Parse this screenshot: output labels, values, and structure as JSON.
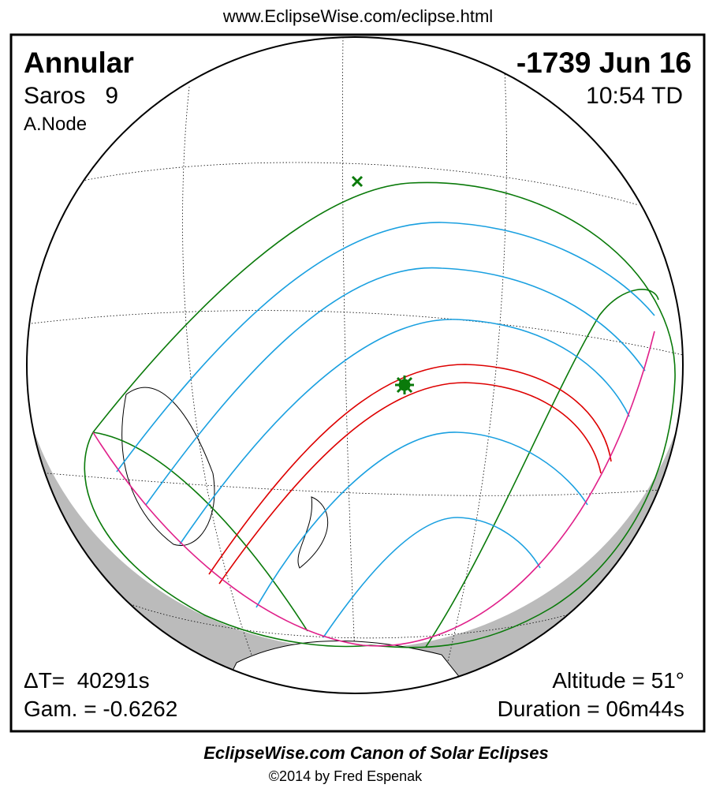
{
  "header": {
    "url": "www.EclipseWise.com/eclipse.html"
  },
  "eclipse": {
    "type": "Annular",
    "date": "-1739 Jun 16",
    "saros": "Saros   9",
    "time": "10:54 TD",
    "node": "A.Node",
    "delta_t": "ΔT=  40291s",
    "gamma": "Gam. = -0.6262",
    "altitude": "Altitude = 51°",
    "duration": "Duration = 06m44s"
  },
  "footer": {
    "title": "EclipseWise.com Canon of Solar Eclipses",
    "copyright": "©2014 by Fred Espenak"
  }
}
